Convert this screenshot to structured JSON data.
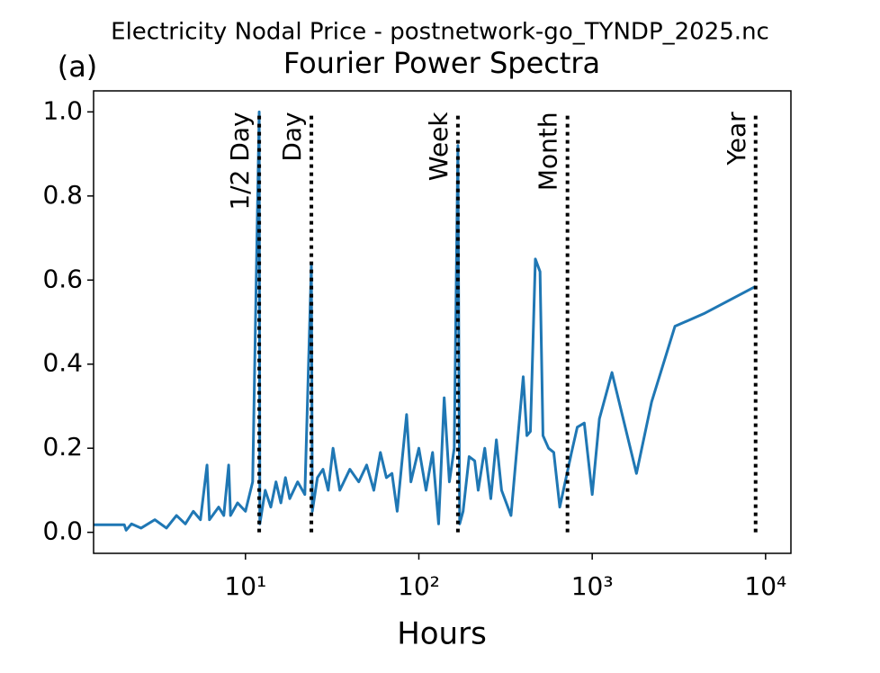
{
  "chart_data": {
    "type": "line",
    "suptitle": "Electricity Nodal Price - postnetwork-go_TYNDP_2025.nc",
    "title": "Fourier Power Spectra",
    "panel_label": "(a)",
    "xlabel": "Hours",
    "xscale": "log",
    "xlim": [
      1.33,
      14000
    ],
    "ylim": [
      -0.05,
      1.05
    ],
    "xticks": [
      {
        "value": 10,
        "label": "10¹"
      },
      {
        "value": 100,
        "label": "10²"
      },
      {
        "value": 1000,
        "label": "10³"
      },
      {
        "value": 10000,
        "label": "10⁴"
      }
    ],
    "yticks": [
      {
        "value": 0,
        "label": "0.0"
      },
      {
        "value": 0.2,
        "label": "0.2"
      },
      {
        "value": 0.4,
        "label": "0.4"
      },
      {
        "value": 0.6,
        "label": "0.6"
      },
      {
        "value": 0.8,
        "label": "0.8"
      },
      {
        "value": 1,
        "label": "1.0"
      }
    ],
    "series": [
      {
        "color": "#1f77b4",
        "x": [
          1.33,
          2.0,
          2.05,
          2.2,
          2.5,
          3,
          3.5,
          4,
          4.5,
          5,
          5.5,
          6,
          6.2,
          7,
          7.5,
          8,
          8.2,
          9,
          10,
          11,
          12,
          12.1,
          13,
          14,
          15,
          16,
          17,
          18,
          20,
          22,
          24,
          24.3,
          26,
          28,
          30,
          32,
          35,
          40,
          45,
          50,
          55,
          60,
          65,
          70,
          75,
          80,
          85,
          90,
          100,
          110,
          120,
          130,
          140,
          150,
          160,
          168,
          172,
          180,
          195,
          210,
          220,
          240,
          260,
          280,
          300,
          340,
          400,
          420,
          440,
          470,
          500,
          520,
          560,
          600,
          650,
          760,
          820,
          900,
          1000,
          1100,
          1300,
          1800,
          2200,
          3000,
          4400,
          8760
        ],
        "values": [
          0.018,
          0.018,
          0.005,
          0.02,
          0.01,
          0.03,
          0.01,
          0.04,
          0.02,
          0.05,
          0.03,
          0.16,
          0.03,
          0.06,
          0.04,
          0.16,
          0.04,
          0.07,
          0.05,
          0.12,
          1.0,
          0.02,
          0.1,
          0.06,
          0.12,
          0.07,
          0.13,
          0.08,
          0.12,
          0.09,
          0.64,
          0.05,
          0.13,
          0.15,
          0.1,
          0.2,
          0.1,
          0.15,
          0.12,
          0.16,
          0.1,
          0.19,
          0.13,
          0.14,
          0.05,
          0.17,
          0.28,
          0.12,
          0.2,
          0.1,
          0.19,
          0.02,
          0.32,
          0.12,
          0.2,
          0.92,
          0.02,
          0.05,
          0.18,
          0.17,
          0.1,
          0.2,
          0.08,
          0.22,
          0.1,
          0.04,
          0.37,
          0.23,
          0.24,
          0.65,
          0.62,
          0.23,
          0.2,
          0.19,
          0.06,
          0.19,
          0.25,
          0.26,
          0.09,
          0.27,
          0.38,
          0.14,
          0.31,
          0.49,
          0.52,
          0.585
        ]
      }
    ],
    "vlines": {
      "x": [
        12,
        24,
        168,
        720,
        8760
      ],
      "labels": [
        "1/2 Day",
        "Day",
        "Week",
        "Month",
        "Year"
      ],
      "ymin": 0,
      "ymax": 1,
      "color": "#000000"
    }
  }
}
